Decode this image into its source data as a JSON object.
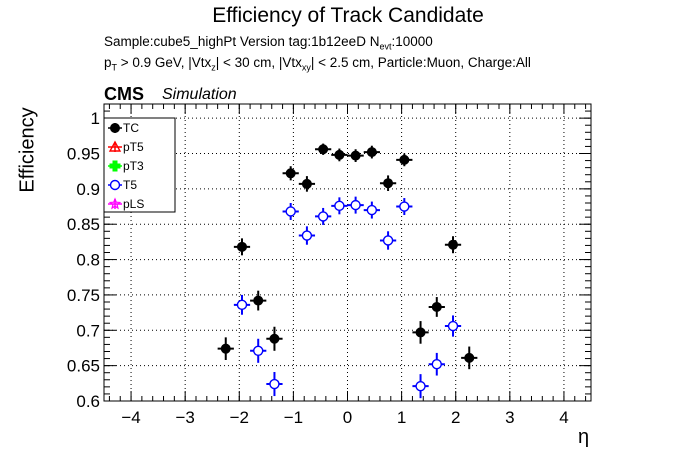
{
  "header": {
    "title": "Efficiency of Track Candidate",
    "sample_line": "Sample:cube5_highPt   Version tag:1b12eeD  N",
    "sample_sub": "evt",
    "sample_tail": ":10000",
    "cuts": {
      "p": "p",
      "p_sub": "T",
      "part1": " > 0.9 GeV, |Vtx",
      "z_sub": "z",
      "part2": "| < 30 cm, |Vtx",
      "xy_sub": "xy",
      "part3": "| < 2.5 cm, Particle:Muon, Charge:All"
    },
    "cms": "CMS",
    "simulation": "Simulation"
  },
  "chart_data": {
    "type": "scatter",
    "xlabel": "η",
    "ylabel": "Efficiency",
    "xlim": [
      -4.5,
      4.5
    ],
    "ylim": [
      0.6,
      1.02
    ],
    "xticks": [
      -4,
      -3,
      -2,
      -1,
      0,
      1,
      2,
      3,
      4
    ],
    "xtick_labels": [
      "−4",
      "−3",
      "−2",
      "−1",
      "0",
      "1",
      "2",
      "3",
      "4"
    ],
    "yticks": [
      0.6,
      0.65,
      0.7,
      0.75,
      0.8,
      0.85,
      0.9,
      0.95,
      1.0
    ],
    "ytick_labels": [
      "0.6",
      "0.65",
      "0.7",
      "0.75",
      "0.8",
      "0.85",
      "0.9",
      "0.95",
      "1"
    ],
    "grid": true,
    "legend_position": "top-left",
    "bin_half_width": 0.15,
    "series": [
      {
        "name": "TC",
        "color": "#000000",
        "marker": "filled-circle",
        "points": [
          {
            "x": -2.25,
            "y": 0.674,
            "err": 0.016
          },
          {
            "x": -1.95,
            "y": 0.818,
            "err": 0.012
          },
          {
            "x": -1.65,
            "y": 0.742,
            "err": 0.014
          },
          {
            "x": -1.35,
            "y": 0.688,
            "err": 0.017
          },
          {
            "x": -1.05,
            "y": 0.922,
            "err": 0.01
          },
          {
            "x": -0.75,
            "y": 0.907,
            "err": 0.011
          },
          {
            "x": -0.45,
            "y": 0.956,
            "err": 0.008
          },
          {
            "x": -0.15,
            "y": 0.948,
            "err": 0.009
          },
          {
            "x": 0.15,
            "y": 0.947,
            "err": 0.009
          },
          {
            "x": 0.45,
            "y": 0.952,
            "err": 0.009
          },
          {
            "x": 0.75,
            "y": 0.908,
            "err": 0.011
          },
          {
            "x": 1.05,
            "y": 0.941,
            "err": 0.009
          },
          {
            "x": 1.35,
            "y": 0.697,
            "err": 0.016
          },
          {
            "x": 1.65,
            "y": 0.733,
            "err": 0.014
          },
          {
            "x": 1.95,
            "y": 0.821,
            "err": 0.012
          },
          {
            "x": 2.25,
            "y": 0.661,
            "err": 0.016
          }
        ]
      },
      {
        "name": "pT5",
        "color": "#ff0000",
        "marker": "open-triangle",
        "points": []
      },
      {
        "name": "pT3",
        "color": "#00ff00",
        "marker": "filled-cross",
        "points": []
      },
      {
        "name": "T5",
        "color": "#0000ff",
        "marker": "open-circle",
        "points": [
          {
            "x": -1.95,
            "y": 0.736,
            "err": 0.014
          },
          {
            "x": -1.65,
            "y": 0.671,
            "err": 0.017
          },
          {
            "x": -1.35,
            "y": 0.624,
            "err": 0.017
          },
          {
            "x": -1.05,
            "y": 0.868,
            "err": 0.012
          },
          {
            "x": -0.75,
            "y": 0.834,
            "err": 0.013
          },
          {
            "x": -0.45,
            "y": 0.861,
            "err": 0.012
          },
          {
            "x": -0.15,
            "y": 0.876,
            "err": 0.012
          },
          {
            "x": 0.15,
            "y": 0.877,
            "err": 0.012
          },
          {
            "x": 0.45,
            "y": 0.87,
            "err": 0.012
          },
          {
            "x": 0.75,
            "y": 0.827,
            "err": 0.013
          },
          {
            "x": 1.05,
            "y": 0.875,
            "err": 0.012
          },
          {
            "x": 1.35,
            "y": 0.621,
            "err": 0.017
          },
          {
            "x": 1.65,
            "y": 0.652,
            "err": 0.016
          },
          {
            "x": 1.95,
            "y": 0.706,
            "err": 0.015
          }
        ]
      },
      {
        "name": "pLS",
        "color": "#ff00ff",
        "marker": "open-star",
        "points": []
      }
    ]
  }
}
